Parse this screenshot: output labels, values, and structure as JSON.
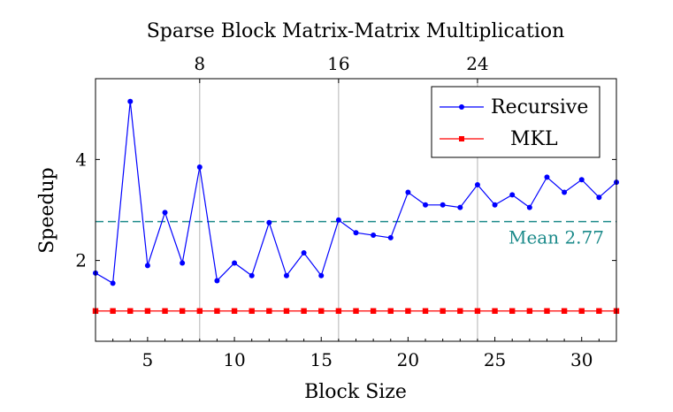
{
  "chart_data": {
    "type": "line",
    "title": "Sparse Block Matrix-Matrix Multiplication",
    "xlabel": "Block Size",
    "ylabel": "Speedup",
    "xlim": [
      2,
      32
    ],
    "ylim": [
      0.4,
      5.6
    ],
    "x_ticks": [
      5,
      10,
      15,
      20,
      25,
      30
    ],
    "x_top_ticks": [
      8,
      16,
      24
    ],
    "y_ticks": [
      2,
      4
    ],
    "vertical_grid": [
      8,
      16,
      24
    ],
    "legend_position": "top-right",
    "series": [
      {
        "name": "Recursive",
        "color": "#0000ff",
        "marker": "circle",
        "x": [
          2,
          3,
          4,
          5,
          6,
          7,
          8,
          9,
          10,
          11,
          12,
          13,
          14,
          15,
          16,
          17,
          18,
          19,
          20,
          21,
          22,
          23,
          24,
          25,
          26,
          27,
          28,
          29,
          30,
          31,
          32
        ],
        "y": [
          1.75,
          1.55,
          5.15,
          1.9,
          2.95,
          1.95,
          3.85,
          1.6,
          1.95,
          1.7,
          2.75,
          1.7,
          2.15,
          1.7,
          2.8,
          2.55,
          2.5,
          2.45,
          3.35,
          3.1,
          3.1,
          3.05,
          3.5,
          3.1,
          3.3,
          3.05,
          3.65,
          3.35,
          3.6,
          3.25,
          3.55
        ]
      },
      {
        "name": "MKL",
        "color": "#ff0000",
        "marker": "square",
        "x": [
          2,
          3,
          4,
          5,
          6,
          7,
          8,
          9,
          10,
          11,
          12,
          13,
          14,
          15,
          16,
          17,
          18,
          19,
          20,
          21,
          22,
          23,
          24,
          25,
          26,
          27,
          28,
          29,
          30,
          31,
          32
        ],
        "y": [
          1,
          1,
          1,
          1,
          1,
          1,
          1,
          1,
          1,
          1,
          1,
          1,
          1,
          1,
          1,
          1,
          1,
          1,
          1,
          1,
          1,
          1,
          1,
          1,
          1,
          1,
          1,
          1,
          1,
          1,
          1
        ]
      }
    ],
    "mean_line": {
      "value": 2.77,
      "label": "Mean 2.77",
      "color": "#1b8a8a"
    }
  }
}
